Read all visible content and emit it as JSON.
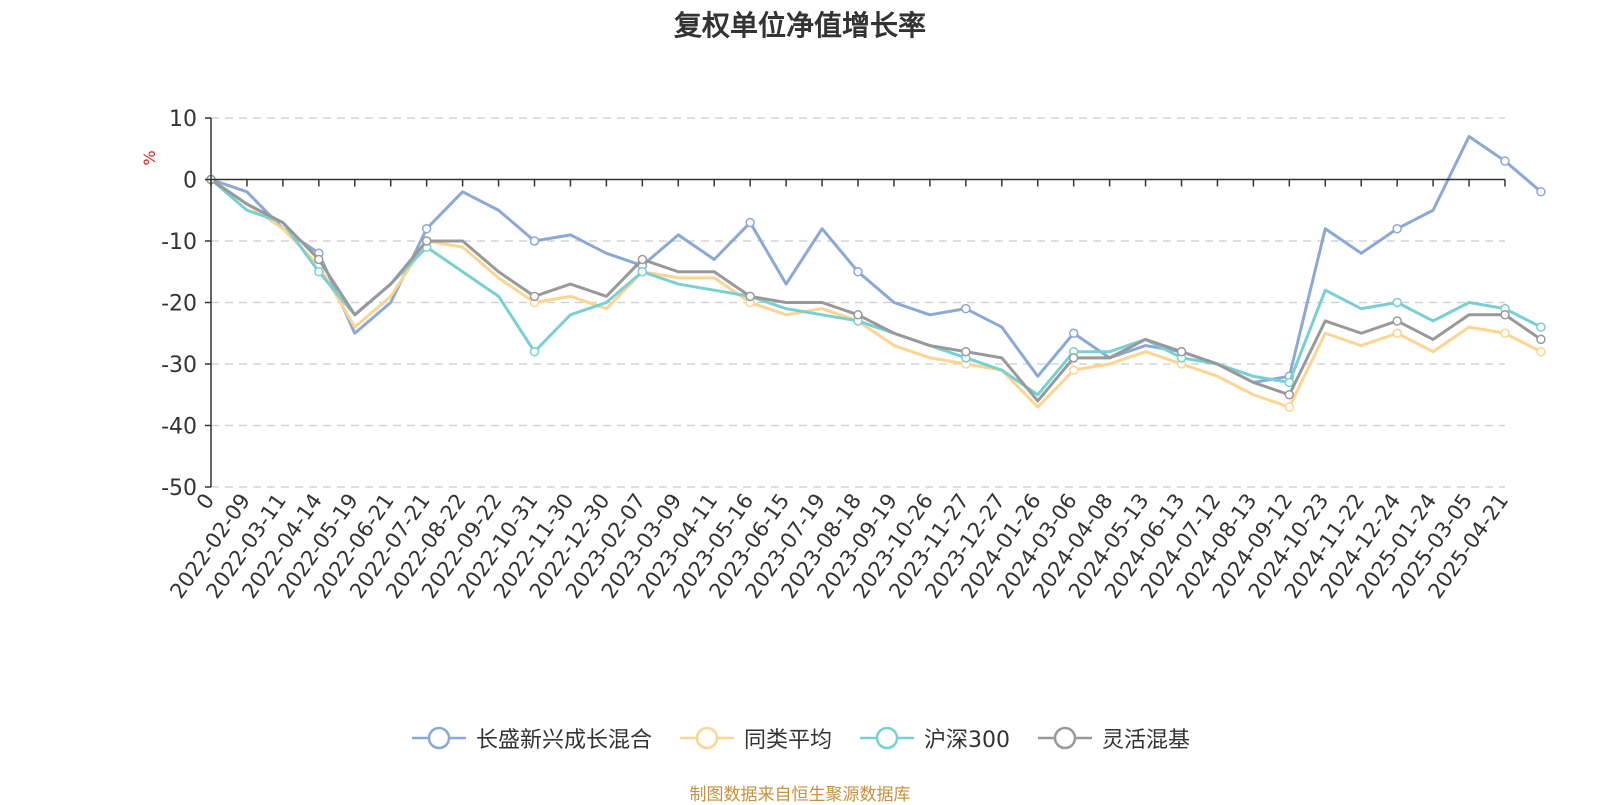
{
  "chart_data": {
    "type": "line",
    "title": "复权单位净值增长率",
    "ylabel": "%",
    "ylim": [
      -50,
      10
    ],
    "yticks": [
      "10",
      "0",
      "-10",
      "-20",
      "-30",
      "-40",
      "-50"
    ],
    "grid": true,
    "legend_position": "bottom-center",
    "x_ticks": [
      "0",
      "2022-02-09",
      "2022-03-11",
      "2022-04-14",
      "2022-05-19",
      "2022-06-21",
      "2022-07-21",
      "2022-08-22",
      "2022-09-22",
      "2022-10-31",
      "2022-11-30",
      "2022-12-30",
      "2023-02-07",
      "2023-03-09",
      "2023-04-11",
      "2023-05-16",
      "2023-06-15",
      "2023-07-19",
      "2023-08-18",
      "2023-09-19",
      "2023-10-26",
      "2023-11-27",
      "2023-12-27",
      "2024-01-26",
      "2024-03-06",
      "2024-04-08",
      "2024-05-13",
      "2024-06-13",
      "2024-07-12",
      "2024-08-13",
      "2024-09-12",
      "2024-10-23",
      "2024-11-22",
      "2024-12-24",
      "2025-01-24",
      "2025-03-05",
      "2025-04-21"
    ],
    "series": [
      {
        "name": "长盛新兴成长混合",
        "color": "#8aa9d6",
        "values": [
          0,
          -2,
          -8,
          -12,
          -25,
          -20,
          -8,
          -2,
          -5,
          -10,
          -9,
          -12,
          -14,
          -9,
          -13,
          -7,
          -17,
          -8,
          -15,
          -20,
          -22,
          -21,
          -24,
          -32,
          -25,
          -29,
          -27,
          -28,
          -30,
          -33,
          -32,
          -8,
          -12,
          -8,
          -5,
          7,
          3,
          -2
        ]
      },
      {
        "name": "同类平均",
        "color": "#fdd491",
        "values": [
          0,
          -4,
          -8,
          -14,
          -24,
          -19,
          -10,
          -11,
          -16,
          -20,
          -19,
          -21,
          -15,
          -16,
          -16,
          -20,
          -22,
          -21,
          -23,
          -27,
          -29,
          -30,
          -31,
          -37,
          -31,
          -30,
          -28,
          -30,
          -32,
          -35,
          -37,
          -25,
          -27,
          -25,
          -28,
          -24,
          -25,
          -28
        ]
      },
      {
        "name": "沪深300",
        "color": "#78d0d2",
        "values": [
          0,
          -5,
          -7,
          -15,
          -22,
          -17,
          -11,
          -15,
          -19,
          -28,
          -22,
          -20,
          -15,
          -17,
          -18,
          -19,
          -21,
          -22,
          -23,
          -25,
          -27,
          -29,
          -31,
          -35,
          -28,
          -28,
          -26,
          -29,
          -30,
          -32,
          -33,
          -18,
          -21,
          -20,
          -23,
          -20,
          -21,
          -24
        ]
      },
      {
        "name": "灵活混基",
        "color": "#999999",
        "values": [
          0,
          -4,
          -7,
          -13,
          -22,
          -17,
          -10,
          -10,
          -15,
          -19,
          -17,
          -19,
          -13,
          -15,
          -15,
          -19,
          -20,
          -20,
          -22,
          -25,
          -27,
          -28,
          -29,
          -36,
          -29,
          -29,
          -26,
          -28,
          -30,
          -33,
          -35,
          -23,
          -25,
          -23,
          -26,
          -22,
          -22,
          -26
        ]
      }
    ]
  },
  "source_note": "制图数据来自恒生聚源数据库"
}
